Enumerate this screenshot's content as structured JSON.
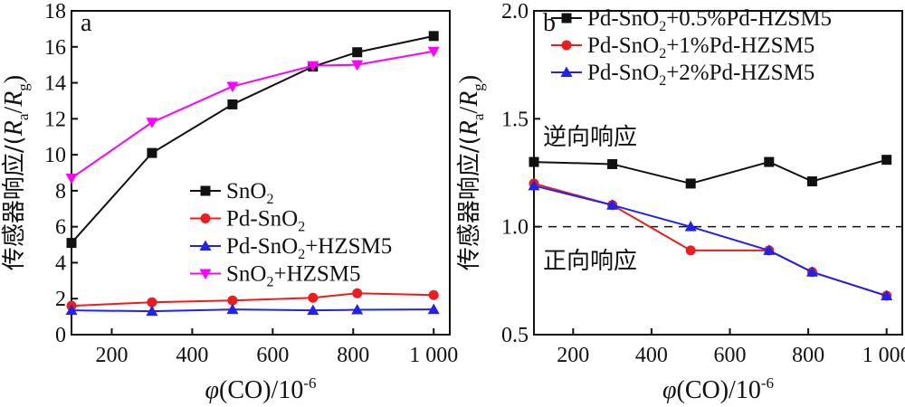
{
  "chart_data": [
    {
      "type": "line",
      "panel_label": "a",
      "ylabel_text": "传感器响应/(",
      "ylabel_math": {
        "ra": "R",
        "ra_sub": "a",
        "slash": "/",
        "rg": "R",
        "rg_sub": "g",
        "close": ")"
      },
      "xlabel_math": {
        "phi": "φ",
        "rest": "(CO)/10",
        "sup": "-6"
      },
      "xlim": [
        100,
        1040
      ],
      "ylim": [
        0,
        18
      ],
      "xticks": [
        200,
        400,
        600,
        800,
        1000
      ],
      "xtick_labels": [
        "200",
        "400",
        "600",
        "800",
        "1 000"
      ],
      "yticks": [
        0,
        2,
        4,
        6,
        8,
        10,
        12,
        14,
        16,
        18
      ],
      "ytick_labels": [
        "0",
        "2",
        "4",
        "6",
        "8",
        "10",
        "12",
        "14",
        "16",
        "18"
      ],
      "legend_position": "center-right",
      "series": [
        {
          "name": "SnO2",
          "label_parts": {
            "base": "SnO",
            "sub": "2",
            "tail": ""
          },
          "color": "#111111",
          "marker": "square",
          "x": [
            100,
            300,
            500,
            700,
            810,
            1000
          ],
          "y": [
            5.1,
            10.1,
            12.8,
            14.9,
            15.7,
            16.6
          ]
        },
        {
          "name": "Pd-SnO2",
          "label_parts": {
            "base": "Pd-SnO",
            "sub": "2",
            "tail": ""
          },
          "color": "#ee1c1c",
          "marker": "circle",
          "x": [
            100,
            300,
            500,
            700,
            810,
            1000
          ],
          "y": [
            1.6,
            1.8,
            1.9,
            2.05,
            2.3,
            2.2
          ]
        },
        {
          "name": "Pd-SnO2+HZSM5",
          "label_parts": {
            "base": "Pd-SnO",
            "sub": "2",
            "tail": "+HZSM5"
          },
          "color": "#2222ee",
          "marker": "triangle",
          "x": [
            100,
            300,
            500,
            700,
            810,
            1000
          ],
          "y": [
            1.35,
            1.3,
            1.4,
            1.35,
            1.38,
            1.4
          ]
        },
        {
          "name": "SnO2+HZSM5",
          "label_parts": {
            "base": "SnO",
            "sub": "2",
            "tail": "+HZSM5"
          },
          "color": "#ff00ff",
          "marker": "triangle-down",
          "x": [
            100,
            300,
            500,
            700,
            810,
            1000
          ],
          "y": [
            8.7,
            11.8,
            13.8,
            14.95,
            15.0,
            15.75
          ]
        }
      ]
    },
    {
      "type": "line",
      "panel_label": "b",
      "ylabel_text": "传感器响应/(",
      "ylabel_math": {
        "ra": "R",
        "ra_sub": "a",
        "slash": "/",
        "rg": "R",
        "rg_sub": "g",
        "close": ")"
      },
      "xlabel_math": {
        "phi": "φ",
        "rest": "(CO)/10",
        "sup": "-6"
      },
      "xlim": [
        100,
        1040
      ],
      "ylim": [
        0.5,
        2.0
      ],
      "xticks": [
        200,
        400,
        600,
        800,
        1000
      ],
      "xtick_labels": [
        "200",
        "400",
        "600",
        "800",
        "1 000"
      ],
      "yticks": [
        0.5,
        1.0,
        1.5,
        2.0
      ],
      "ytick_labels": [
        "0.5",
        "1.0",
        "1.5",
        "2.0"
      ],
      "reference_line": 1.0,
      "annotations": [
        "逆向响应",
        "正向响应"
      ],
      "legend_position": "top-right",
      "series": [
        {
          "name": "Pd-SnO2+0.5%Pd-HZSM5",
          "label_parts": {
            "base": "Pd-SnO",
            "sub": "2",
            "tail": "+0.5%Pd-HZSM5"
          },
          "color": "#111111",
          "marker": "square",
          "x": [
            100,
            300,
            500,
            700,
            810,
            1000
          ],
          "y": [
            1.3,
            1.29,
            1.2,
            1.3,
            1.21,
            1.31
          ]
        },
        {
          "name": "Pd-SnO2+1%Pd-HZSM5",
          "label_parts": {
            "base": "Pd-SnO",
            "sub": "2",
            "tail": "+1%Pd-HZSM5"
          },
          "color": "#ee1c1c",
          "marker": "circle",
          "x": [
            100,
            300,
            500,
            700,
            810,
            1000
          ],
          "y": [
            1.2,
            1.1,
            0.89,
            0.89,
            0.79,
            0.68
          ]
        },
        {
          "name": "Pd-SnO2+2%Pd-HZSM5",
          "label_parts": {
            "base": "Pd-SnO",
            "sub": "2",
            "tail": "+2%Pd-HZSM5"
          },
          "color": "#2222ee",
          "marker": "triangle",
          "x": [
            100,
            300,
            500,
            700,
            810,
            1000
          ],
          "y": [
            1.19,
            1.1,
            1.0,
            0.89,
            0.79,
            0.68
          ]
        }
      ]
    }
  ]
}
